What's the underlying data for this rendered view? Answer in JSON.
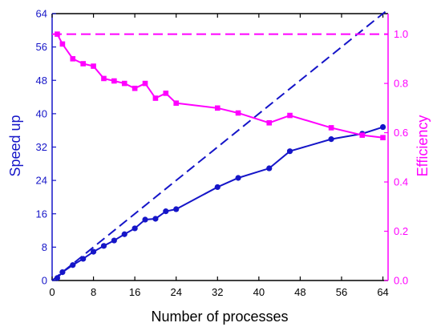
{
  "chart_data": {
    "type": "line",
    "xlabel": "Number of processes",
    "ylabel_left": "Speed up",
    "ylabel_right": "Efficiency",
    "xlim": [
      0,
      65
    ],
    "ylim_left": [
      0,
      64
    ],
    "ylim_right": [
      0,
      1.0833
    ],
    "x_ticks": [
      0,
      8,
      16,
      24,
      32,
      40,
      48,
      56,
      64
    ],
    "y_left_ticks": [
      0,
      8,
      16,
      24,
      32,
      40,
      48,
      56,
      64
    ],
    "y_right_ticks": [
      "0.0",
      "0.2",
      "0.4",
      "0.6",
      "0.8",
      "1.0"
    ],
    "grid": false,
    "colors": {
      "speedup": "#1515c8",
      "efficiency": "#ff00ff",
      "axis": "#000000"
    },
    "series": [
      {
        "axis": "left",
        "style": "solid",
        "marker": "circle",
        "x": [
          1,
          2,
          4,
          6,
          8,
          10,
          12,
          14,
          16,
          18,
          20,
          22,
          24,
          32,
          36,
          42,
          46,
          54,
          60,
          64
        ],
        "y": [
          0.6,
          2,
          3.7,
          5.2,
          6.9,
          8.3,
          9.6,
          11.1,
          12.5,
          14.6,
          14.8,
          16.6,
          17.1,
          22.4,
          24.6,
          26.9,
          31,
          33.9,
          35.2,
          36.8
        ]
      },
      {
        "axis": "right",
        "style": "solid",
        "marker": "square",
        "x": [
          1,
          2,
          4,
          6,
          8,
          10,
          12,
          14,
          16,
          18,
          20,
          22,
          24,
          32,
          36,
          42,
          46,
          54,
          60,
          64
        ],
        "y": [
          1.0,
          0.96,
          0.9,
          0.88,
          0.87,
          0.82,
          0.81,
          0.8,
          0.78,
          0.8,
          0.74,
          0.76,
          0.72,
          0.7,
          0.68,
          0.64,
          0.67,
          0.62,
          0.59,
          0.58
        ]
      },
      {
        "axis": "left",
        "style": "dashed",
        "x": [
          0,
          65
        ],
        "y": [
          0,
          65
        ]
      },
      {
        "axis": "right",
        "style": "dashed",
        "x": [
          0,
          65
        ],
        "y": [
          1.0,
          1.0
        ]
      }
    ]
  }
}
